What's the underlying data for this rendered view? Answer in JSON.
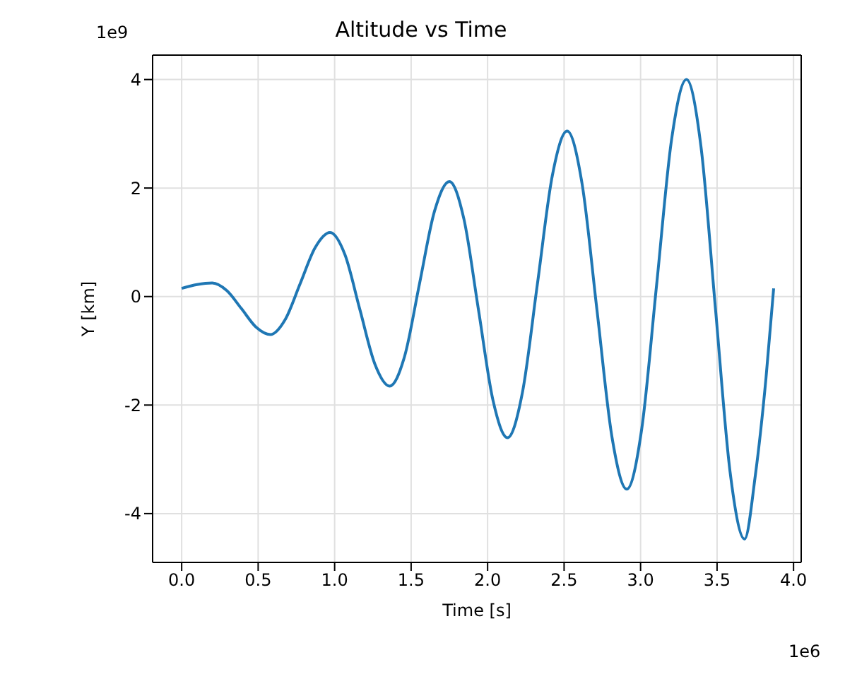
{
  "chart_data": {
    "type": "line",
    "title": "Altitude vs Time",
    "xlabel": "Time [s]",
    "ylabel": "Y [km]",
    "annotations": [
      "1e9",
      "1e6"
    ],
    "x": [
      0,
      0.1,
      0.2,
      0.295,
      0.39,
      0.485,
      0.58,
      0.6775,
      0.775,
      0.8725,
      0.97,
      1.0675,
      1.165,
      1.2625,
      1.36,
      1.4575,
      1.555,
      1.6525,
      1.75,
      1.845,
      1.94,
      2.035,
      2.13,
      2.2275,
      2.325,
      2.4225,
      2.52,
      2.6175,
      2.715,
      2.8125,
      2.91,
      3.0075,
      3.105,
      3.2025,
      3.3,
      3.395,
      3.49,
      3.585,
      3.68,
      3.75,
      3.82,
      3.87
    ],
    "series": [
      {
        "color": "#1f77b4",
        "values": [
          0.15,
          0.22,
          0.25,
          0.11,
          -0.22,
          -0.56,
          -0.7,
          -0.42,
          0.24,
          0.9,
          1.18,
          0.77,
          -0.24,
          -1.24,
          -1.65,
          -1.1,
          0.24,
          1.57,
          2.12,
          1.43,
          -0.24,
          -1.91,
          -2.6,
          -1.77,
          0.22,
          2.22,
          3.05,
          2.08,
          -0.25,
          -2.58,
          -3.55,
          -2.44,
          0.22,
          2.89,
          4.0,
          2.76,
          -0.24,
          -3.23,
          -4.47,
          -3.3,
          -1.5,
          0.15
        ]
      }
    ],
    "xlim": [
      -0.19,
      4.05
    ],
    "ylim": [
      -4.9,
      4.45
    ],
    "xticks": [
      {
        "value": 0,
        "label": "0.0"
      },
      0.5,
      {
        "value": 1,
        "label": "1.0"
      },
      1.5,
      {
        "value": 2,
        "label": "2.0"
      },
      2.5,
      {
        "value": 3,
        "label": "3.0"
      },
      3.5,
      {
        "value": 4,
        "label": "4.0"
      }
    ],
    "yticks": [
      -4,
      -2,
      0,
      2,
      4
    ],
    "grid": true,
    "marker": "none",
    "line_style": "solid"
  }
}
